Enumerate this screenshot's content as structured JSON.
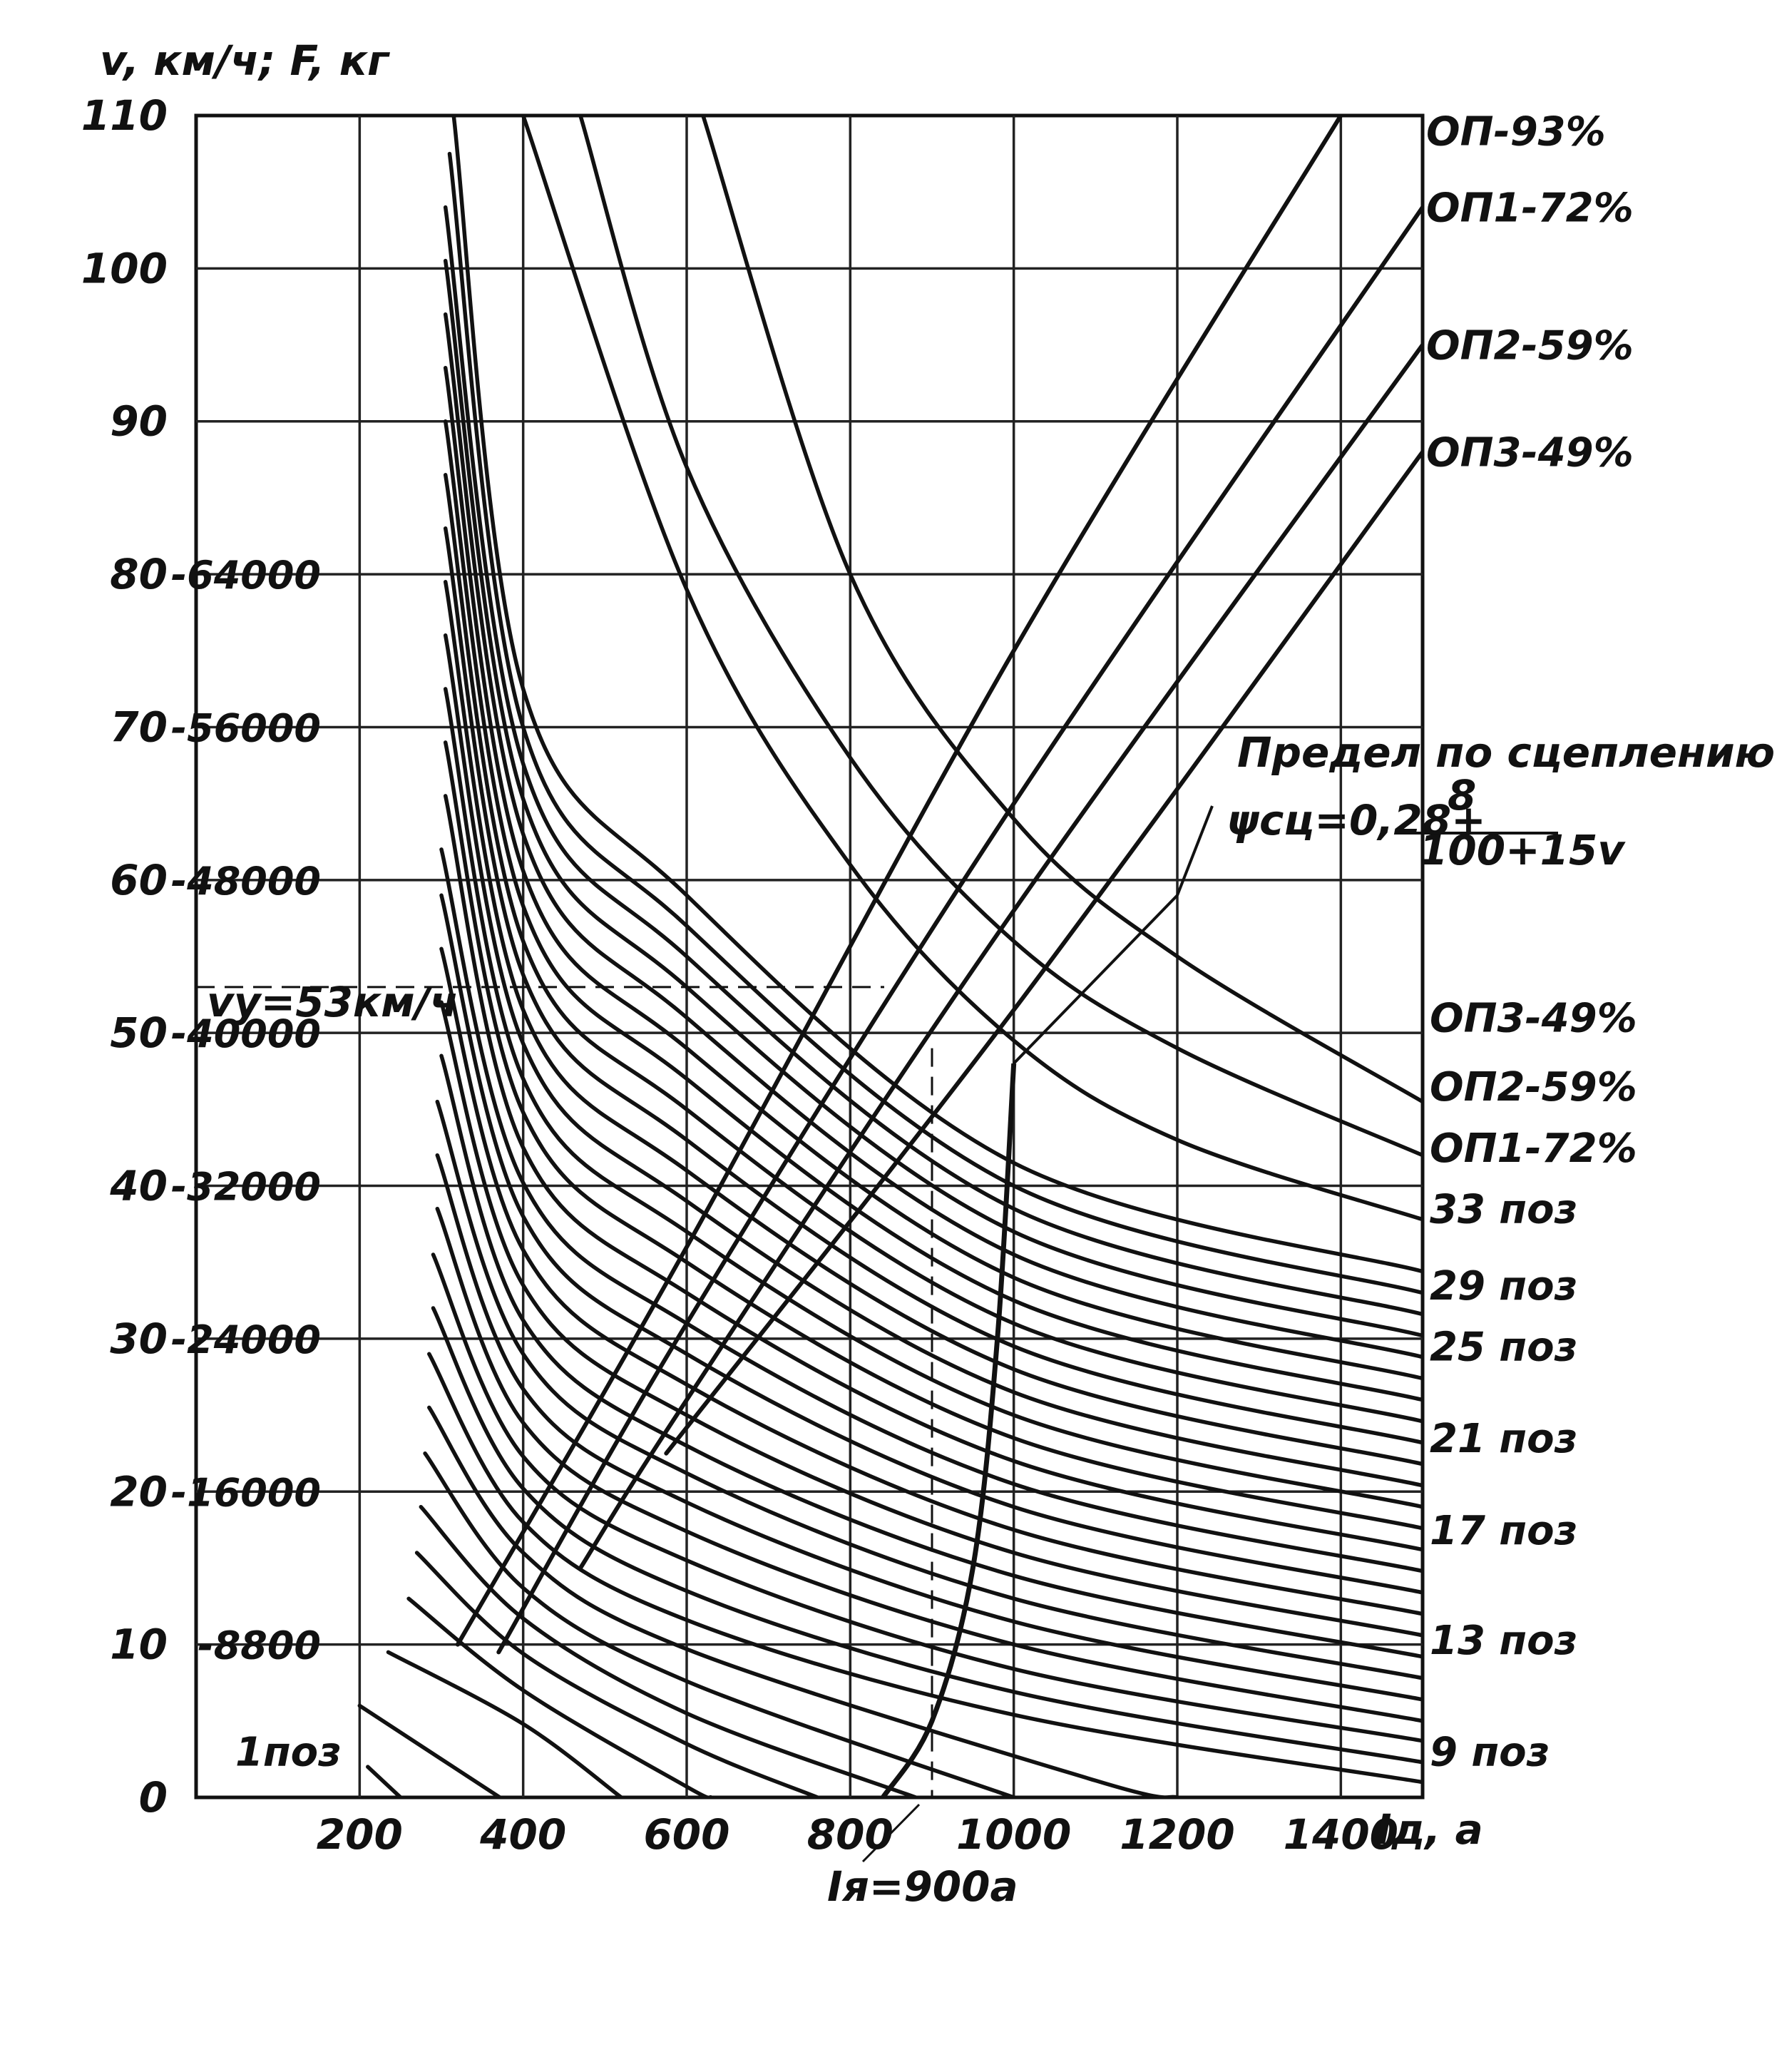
{
  "chart_data": {
    "type": "line",
    "title": "",
    "ylabel": "v, км/ч; F, кг",
    "xlabel": "Iд, а",
    "xlim": [
      0,
      1500
    ],
    "ylim": [
      0,
      110
    ],
    "x_ticks": [
      "200",
      "400",
      "600",
      "800",
      "1000",
      "1200",
      "1400"
    ],
    "y_ticks": [
      "0",
      "10",
      "20",
      "30",
      "40",
      "50",
      "60",
      "70",
      "80",
      "90",
      "100",
      "110"
    ],
    "force_ticks": [
      {
        "v": 10,
        "label": "8800"
      },
      {
        "v": 20,
        "label": "16000"
      },
      {
        "v": 30,
        "label": "24000"
      },
      {
        "v": 40,
        "label": "32000"
      },
      {
        "v": 50,
        "label": "40000"
      },
      {
        "v": 60,
        "label": "48000"
      },
      {
        "v": 70,
        "label": "56000"
      },
      {
        "v": 80,
        "label": "64000"
      }
    ],
    "speed_curves": [
      {
        "label": "1поз",
        "label_v": 3,
        "points": [
          [
            210,
            2
          ],
          [
            270,
            -1
          ]
        ]
      },
      {
        "label": "",
        "points": [
          [
            200,
            6
          ],
          [
            400,
            -1
          ]
        ]
      },
      {
        "label": "",
        "points": [
          [
            235,
            9.5
          ],
          [
            400,
            4.8
          ],
          [
            520,
            0
          ]
        ]
      },
      {
        "label": "",
        "points": [
          [
            260,
            13
          ],
          [
            400,
            7
          ],
          [
            600,
            0.7
          ],
          [
            630,
            0
          ]
        ]
      },
      {
        "label": "",
        "points": [
          [
            270,
            16
          ],
          [
            400,
            9.4
          ],
          [
            600,
            3.5
          ],
          [
            760,
            0
          ]
        ]
      },
      {
        "label": "",
        "points": [
          [
            275,
            19
          ],
          [
            400,
            11.7
          ],
          [
            600,
            5.5
          ],
          [
            880,
            0
          ]
        ]
      },
      {
        "label": "",
        "points": [
          [
            280,
            22.5
          ],
          [
            400,
            13.7
          ],
          [
            600,
            7.6
          ],
          [
            1000,
            0
          ]
        ]
      },
      {
        "label": "",
        "points": [
          [
            285,
            25.5
          ],
          [
            400,
            16
          ],
          [
            600,
            9.7
          ],
          [
            1100,
            1.1
          ],
          [
            1200,
            0
          ]
        ]
      },
      {
        "label": "9 поз",
        "label_v": 3,
        "points": [
          [
            285,
            29
          ],
          [
            400,
            18
          ],
          [
            600,
            11.6
          ],
          [
            1000,
            5.4
          ],
          [
            1500,
            1
          ]
        ]
      },
      {
        "label": "",
        "points": [
          [
            290,
            32
          ],
          [
            400,
            20.2
          ],
          [
            600,
            13.5
          ],
          [
            1000,
            6.9
          ],
          [
            1500,
            2.3
          ]
        ]
      },
      {
        "label": "",
        "points": [
          [
            290,
            35.5
          ],
          [
            400,
            22.3
          ],
          [
            600,
            15.5
          ],
          [
            1000,
            8.4
          ],
          [
            1500,
            3.7
          ]
        ]
      },
      {
        "label": "",
        "points": [
          [
            295,
            38.5
          ],
          [
            400,
            24.5
          ],
          [
            600,
            17.4
          ],
          [
            1000,
            10
          ],
          [
            1500,
            5
          ]
        ]
      },
      {
        "label": "13 поз",
        "label_v": 10.3,
        "points": [
          [
            295,
            42
          ],
          [
            400,
            26.7
          ],
          [
            600,
            19.3
          ],
          [
            1000,
            11.5
          ],
          [
            1500,
            6.4
          ]
        ]
      },
      {
        "label": "",
        "points": [
          [
            295,
            45.5
          ],
          [
            400,
            29
          ],
          [
            600,
            21.2
          ],
          [
            1000,
            13
          ],
          [
            1500,
            7.8
          ]
        ]
      },
      {
        "label": "",
        "points": [
          [
            300,
            48.5
          ],
          [
            400,
            31.2
          ],
          [
            600,
            23
          ],
          [
            1000,
            14.5
          ],
          [
            1500,
            9.2
          ]
        ]
      },
      {
        "label": "",
        "points": [
          [
            300,
            52
          ],
          [
            400,
            33.5
          ],
          [
            600,
            25
          ],
          [
            1000,
            16
          ],
          [
            1500,
            10.6
          ]
        ]
      },
      {
        "label": "17 поз",
        "label_v": 17.5,
        "points": [
          [
            300,
            55.5
          ],
          [
            400,
            35.8
          ],
          [
            600,
            27
          ],
          [
            1000,
            17.5
          ],
          [
            1500,
            12
          ]
        ]
      },
      {
        "label": "",
        "points": [
          [
            300,
            59
          ],
          [
            400,
            38
          ],
          [
            600,
            29
          ],
          [
            1000,
            19
          ],
          [
            1500,
            13.4
          ]
        ]
      },
      {
        "label": "",
        "points": [
          [
            300,
            62
          ],
          [
            400,
            40.2
          ],
          [
            600,
            31
          ],
          [
            1000,
            20.5
          ],
          [
            1500,
            14.8
          ]
        ]
      },
      {
        "label": "",
        "points": [
          [
            305,
            65.5
          ],
          [
            400,
            42.5
          ],
          [
            600,
            33
          ],
          [
            1000,
            22
          ],
          [
            1500,
            16.2
          ]
        ]
      },
      {
        "label": "21 поз",
        "label_v": 23.5,
        "points": [
          [
            305,
            69
          ],
          [
            400,
            44.8
          ],
          [
            600,
            35
          ],
          [
            1000,
            23.5
          ],
          [
            1500,
            17.6
          ]
        ]
      },
      {
        "label": "",
        "points": [
          [
            305,
            72.5
          ],
          [
            400,
            47
          ],
          [
            600,
            37
          ],
          [
            1000,
            25
          ],
          [
            1500,
            19
          ]
        ]
      },
      {
        "label": "",
        "points": [
          [
            305,
            76
          ],
          [
            400,
            49.3
          ],
          [
            600,
            39
          ],
          [
            1000,
            26.5
          ],
          [
            1500,
            20.4
          ]
        ]
      },
      {
        "label": "",
        "points": [
          [
            305,
            79.5
          ],
          [
            400,
            51.5
          ],
          [
            600,
            41
          ],
          [
            1000,
            28
          ],
          [
            1500,
            21.8
          ]
        ]
      },
      {
        "label": "25 поз",
        "label_v": 29.5,
        "points": [
          [
            305,
            83
          ],
          [
            400,
            53.8
          ],
          [
            600,
            43
          ],
          [
            1000,
            29.5
          ],
          [
            1500,
            23.2
          ]
        ]
      },
      {
        "label": "",
        "points": [
          [
            305,
            86.5
          ],
          [
            400,
            56
          ],
          [
            600,
            45
          ],
          [
            1000,
            31
          ],
          [
            1500,
            24.6
          ]
        ]
      },
      {
        "label": "",
        "points": [
          [
            305,
            90
          ],
          [
            400,
            58.3
          ],
          [
            600,
            47
          ],
          [
            1000,
            32.5
          ],
          [
            1500,
            26
          ]
        ]
      },
      {
        "label": "",
        "points": [
          [
            305,
            93.5
          ],
          [
            400,
            60.6
          ],
          [
            600,
            49
          ],
          [
            1000,
            34
          ],
          [
            1500,
            27.4
          ]
        ]
      },
      {
        "label": "29 поз",
        "label_v": 33.5,
        "points": [
          [
            305,
            97
          ],
          [
            400,
            63
          ],
          [
            600,
            51
          ],
          [
            1000,
            35.5
          ],
          [
            1500,
            28.8
          ]
        ]
      },
      {
        "label": "",
        "points": [
          [
            305,
            100.5
          ],
          [
            400,
            65.3
          ],
          [
            600,
            53
          ],
          [
            1000,
            37
          ],
          [
            1500,
            30.2
          ]
        ]
      },
      {
        "label": "",
        "points": [
          [
            305,
            104
          ],
          [
            400,
            67.6
          ],
          [
            600,
            55
          ],
          [
            1000,
            38.5
          ],
          [
            1500,
            31.6
          ]
        ]
      },
      {
        "label": "",
        "points": [
          [
            310,
            107.5
          ],
          [
            400,
            70
          ],
          [
            600,
            57
          ],
          [
            1000,
            40
          ],
          [
            1500,
            33
          ]
        ]
      },
      {
        "label": "33 поз",
        "label_v": 38.5,
        "points": [
          [
            315,
            110
          ],
          [
            400,
            72.5
          ],
          [
            600,
            59
          ],
          [
            1000,
            41.5
          ],
          [
            1500,
            34.4
          ]
        ]
      },
      {
        "label": "ОП1-72%",
        "label_v": 42.5,
        "points": [
          [
            400,
            110
          ],
          [
            600,
            79
          ],
          [
            800,
            61
          ],
          [
            1000,
            49.5
          ],
          [
            1200,
            43
          ],
          [
            1500,
            37.8
          ]
        ]
      },
      {
        "label": "ОП2-59%",
        "label_v": 46.5,
        "points": [
          [
            470,
            110
          ],
          [
            600,
            87
          ],
          [
            800,
            68
          ],
          [
            1000,
            56
          ],
          [
            1200,
            49
          ],
          [
            1500,
            42
          ]
        ]
      },
      {
        "label": "ОП3-49%",
        "label_v": 51,
        "points": [
          [
            620,
            110
          ],
          [
            800,
            80
          ],
          [
            1000,
            64
          ],
          [
            1200,
            55
          ],
          [
            1500,
            45.5
          ]
        ]
      }
    ],
    "force_curves": [
      {
        "label": "ОП-93%",
        "label_v": 109,
        "points": [
          [
            320,
            10
          ],
          [
            600,
            36
          ],
          [
            1000,
            75
          ],
          [
            1400,
            110
          ]
        ]
      },
      {
        "label": "ОП1-72%",
        "label_v": 104,
        "points": [
          [
            370,
            9.5
          ],
          [
            600,
            31
          ],
          [
            1000,
            65
          ],
          [
            1500,
            104
          ]
        ]
      },
      {
        "label": "ОП2-59%",
        "label_v": 95,
        "points": [
          [
            470,
            15
          ],
          [
            600,
            26
          ],
          [
            1000,
            58
          ],
          [
            1500,
            95
          ]
        ]
      },
      {
        "label": "ОП3-49%",
        "label_v": 88,
        "points": [
          [
            575,
            22.5
          ],
          [
            1000,
            51.5
          ],
          [
            1500,
            88
          ]
        ]
      }
    ],
    "adhesion_limit": {
      "label": "Предел по сцеплению",
      "formula_lhs": "ψсц=0,28+",
      "formula_num": "8",
      "formula_den": "100+15v",
      "points": [
        [
          840,
          0
        ],
        [
          900,
          5
        ],
        [
          950,
          15
        ],
        [
          980,
          30
        ],
        [
          1000,
          48
        ],
        [
          1010,
          48.3
        ],
        [
          1200,
          59
        ]
      ]
    },
    "annotations": {
      "vu": "vу=53км/ч",
      "vu_value": 53,
      "ia": "Iя=900а",
      "ia_value": 900
    }
  }
}
